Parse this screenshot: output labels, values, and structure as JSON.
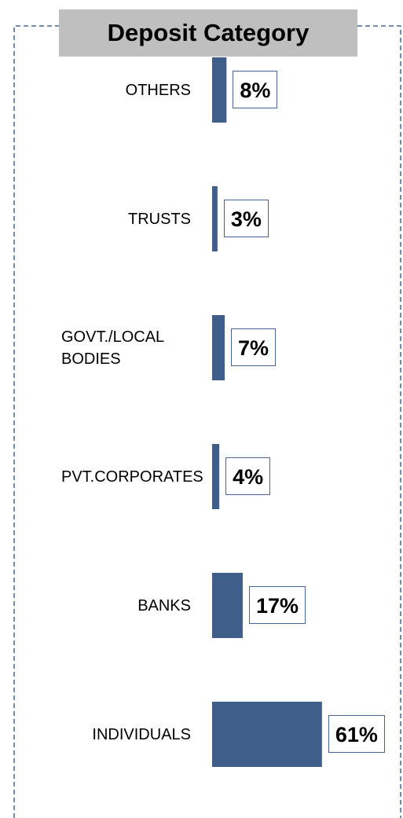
{
  "chart_data": {
    "type": "bar",
    "orientation": "horizontal",
    "title": "Deposit Category",
    "categories": [
      "OTHERS",
      "TRUSTS",
      "GOVT./LOCAL BODIES",
      "PVT.CORPORATES",
      "BANKS",
      "INDIVIDUALS"
    ],
    "values": [
      8,
      3,
      7,
      4,
      17,
      61
    ],
    "value_labels": [
      "8%",
      "3%",
      "7%",
      "4%",
      "17%",
      "61%"
    ],
    "color": "#3f5f8a",
    "xlim": [
      0,
      65
    ]
  }
}
